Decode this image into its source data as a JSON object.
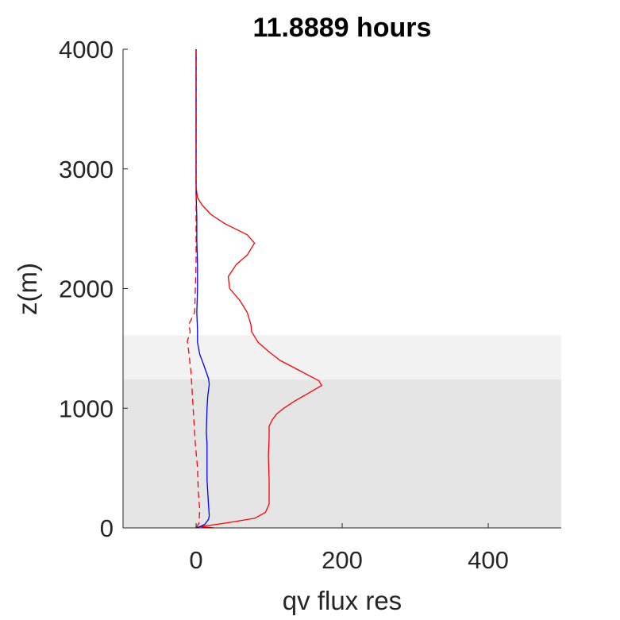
{
  "chart_data": {
    "type": "line",
    "title": "11.8889 hours",
    "xlabel": "qv flux res",
    "ylabel": "z(m)",
    "xlim": [
      -100,
      500
    ],
    "ylim": [
      0,
      4000
    ],
    "xticks": [
      0,
      200,
      400
    ],
    "yticks": [
      0,
      1000,
      2000,
      3000,
      4000
    ],
    "xtick_labels": [
      "0",
      "200",
      "400"
    ],
    "ytick_labels": [
      "0",
      "1000",
      "2000",
      "3000",
      "4000"
    ],
    "grid": false,
    "legend": null,
    "bands": [
      {
        "y0": 0,
        "y1": 1240,
        "color": "#e5e5e5"
      },
      {
        "y0": 1240,
        "y1": 1610,
        "color": "#f2f2f2"
      }
    ],
    "series": [
      {
        "color": "#ff0000",
        "style": "solid",
        "points": [
          [
            25,
            0
          ],
          [
            5,
            10
          ],
          [
            40,
            40
          ],
          [
            80,
            80
          ],
          [
            95,
            130
          ],
          [
            100,
            200
          ],
          [
            100,
            400
          ],
          [
            99,
            600
          ],
          [
            100,
            750
          ],
          [
            100,
            850
          ],
          [
            104,
            900
          ],
          [
            110,
            950
          ],
          [
            120,
            1000
          ],
          [
            135,
            1060
          ],
          [
            155,
            1130
          ],
          [
            172,
            1190
          ],
          [
            168,
            1230
          ],
          [
            140,
            1320
          ],
          [
            115,
            1400
          ],
          [
            100,
            1470
          ],
          [
            85,
            1550
          ],
          [
            76,
            1640
          ],
          [
            75,
            1700
          ],
          [
            70,
            1800
          ],
          [
            60,
            1900
          ],
          [
            46,
            2000
          ],
          [
            44,
            2100
          ],
          [
            55,
            2200
          ],
          [
            70,
            2280
          ],
          [
            80,
            2380
          ],
          [
            70,
            2450
          ],
          [
            40,
            2540
          ],
          [
            20,
            2620
          ],
          [
            8,
            2700
          ],
          [
            2,
            2760
          ],
          [
            0,
            2850
          ],
          [
            0,
            3000
          ],
          [
            0,
            4000
          ]
        ]
      },
      {
        "color": "#0000ff",
        "style": "solid",
        "points": [
          [
            0,
            0
          ],
          [
            5,
            10
          ],
          [
            12,
            30
          ],
          [
            17,
            70
          ],
          [
            18,
            100
          ],
          [
            17,
            200
          ],
          [
            16,
            300
          ],
          [
            15,
            400
          ],
          [
            15,
            500
          ],
          [
            15,
            600
          ],
          [
            15,
            700
          ],
          [
            14,
            800
          ],
          [
            15,
            1000
          ],
          [
            16,
            1100
          ],
          [
            18,
            1200
          ],
          [
            17,
            1250
          ],
          [
            14,
            1300
          ],
          [
            10,
            1370
          ],
          [
            5,
            1450
          ],
          [
            2,
            1550
          ],
          [
            2,
            1650
          ],
          [
            1,
            1800
          ],
          [
            2,
            2000
          ],
          [
            2,
            2200
          ],
          [
            1,
            2400
          ],
          [
            1,
            2600
          ],
          [
            0,
            2800
          ],
          [
            0,
            4000
          ]
        ]
      },
      {
        "color": "#ff0000",
        "style": "dashed",
        "points": [
          [
            0,
            0
          ],
          [
            4,
            40
          ],
          [
            5,
            150
          ],
          [
            3,
            300
          ],
          [
            2,
            500
          ],
          [
            -1,
            700
          ],
          [
            -3,
            900
          ],
          [
            -5,
            1100
          ],
          [
            -7,
            1300
          ],
          [
            -10,
            1470
          ],
          [
            -12,
            1560
          ],
          [
            -8,
            1640
          ],
          [
            -10,
            1700
          ],
          [
            -2,
            1800
          ],
          [
            -1,
            2000
          ],
          [
            0,
            2200
          ],
          [
            0,
            2600
          ],
          [
            0,
            4000
          ]
        ]
      }
    ]
  }
}
